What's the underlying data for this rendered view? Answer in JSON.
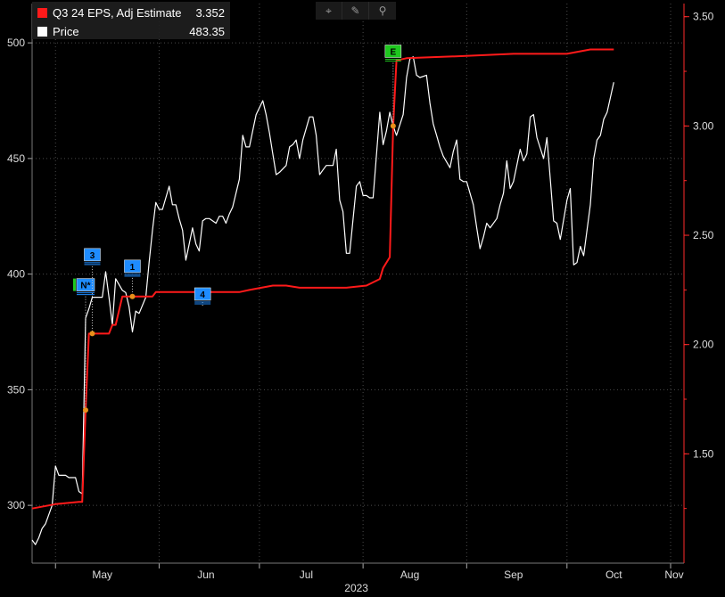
{
  "legend": {
    "items": [
      {
        "name": "Q3 24 EPS, Adj Estimate",
        "value": "3.352",
        "color": "#ff1a1a"
      },
      {
        "name": "Price",
        "value": "483.35",
        "color": "#ffffff"
      }
    ]
  },
  "toolbar": {
    "tools": [
      {
        "icon": "crosshair-icon",
        "glyph": "⌖"
      },
      {
        "icon": "pencil-icon",
        "glyph": "✎"
      },
      {
        "icon": "zoom-icon",
        "glyph": "⚲"
      }
    ]
  },
  "chart_data": {
    "type": "line",
    "xaxis": {
      "months": [
        "May",
        "Jun",
        "Jul",
        "Aug",
        "Sep",
        "Oct",
        "Nov"
      ],
      "year": "2023",
      "range": [
        "2023-04-24",
        "2023-11-05"
      ]
    },
    "left_axis": {
      "ticks": [
        "300",
        "350",
        "400",
        "450",
        "500"
      ],
      "range": [
        275,
        517
      ]
    },
    "right_axis": {
      "ticks": [
        "1.50",
        "2.00",
        "2.50",
        "3.00",
        "3.50"
      ],
      "range": [
        1.0,
        3.56
      ],
      "color": "#ff2a2a"
    },
    "grid": true,
    "series": [
      {
        "name": "Price",
        "axis": "left",
        "color": "#ffffff",
        "points": [
          [
            "2023-04-24",
            285
          ],
          [
            "2023-04-25",
            283
          ],
          [
            "2023-04-26",
            286
          ],
          [
            "2023-04-27",
            290
          ],
          [
            "2023-04-28",
            292
          ],
          [
            "2023-04-30",
            300
          ],
          [
            "2023-05-01",
            317
          ],
          [
            "2023-05-02",
            313
          ],
          [
            "2023-05-03",
            313
          ],
          [
            "2023-05-04",
            313
          ],
          [
            "2023-05-05",
            312
          ],
          [
            "2023-05-07",
            312
          ],
          [
            "2023-05-08",
            306
          ],
          [
            "2023-05-09",
            305
          ],
          [
            "2023-05-10",
            381
          ],
          [
            "2023-05-11",
            385
          ],
          [
            "2023-05-12",
            390
          ],
          [
            "2023-05-14",
            390
          ],
          [
            "2023-05-15",
            390
          ],
          [
            "2023-05-16",
            401
          ],
          [
            "2023-05-17",
            390
          ],
          [
            "2023-05-18",
            378
          ],
          [
            "2023-05-19",
            398
          ],
          [
            "2023-05-21",
            393
          ],
          [
            "2023-05-22",
            392
          ],
          [
            "2023-05-23",
            386
          ],
          [
            "2023-05-24",
            375
          ],
          [
            "2023-05-25",
            384
          ],
          [
            "2023-05-26",
            383
          ],
          [
            "2023-05-28",
            390
          ],
          [
            "2023-05-29",
            405
          ],
          [
            "2023-05-30",
            419
          ],
          [
            "2023-05-31",
            431
          ],
          [
            "2023-06-01",
            428
          ],
          [
            "2023-06-02",
            428
          ],
          [
            "2023-06-04",
            438
          ],
          [
            "2023-06-05",
            430
          ],
          [
            "2023-06-06",
            430
          ],
          [
            "2023-06-07",
            424
          ],
          [
            "2023-06-08",
            419
          ],
          [
            "2023-06-09",
            406
          ],
          [
            "2023-06-11",
            420
          ],
          [
            "2023-06-12",
            413
          ],
          [
            "2023-06-13",
            410
          ],
          [
            "2023-06-14",
            423
          ],
          [
            "2023-06-15",
            424
          ],
          [
            "2023-06-16",
            424
          ],
          [
            "2023-06-18",
            422
          ],
          [
            "2023-06-19",
            425
          ],
          [
            "2023-06-20",
            425
          ],
          [
            "2023-06-21",
            422
          ],
          [
            "2023-06-22",
            426
          ],
          [
            "2023-06-23",
            429
          ],
          [
            "2023-06-25",
            441
          ],
          [
            "2023-06-26",
            460
          ],
          [
            "2023-06-27",
            455
          ],
          [
            "2023-06-28",
            455
          ],
          [
            "2023-06-29",
            462
          ],
          [
            "2023-06-30",
            469
          ],
          [
            "2023-07-02",
            475
          ],
          [
            "2023-07-03",
            469
          ],
          [
            "2023-07-04",
            461
          ],
          [
            "2023-07-05",
            452
          ],
          [
            "2023-07-06",
            443
          ],
          [
            "2023-07-07",
            444
          ],
          [
            "2023-07-09",
            447
          ],
          [
            "2023-07-10",
            455
          ],
          [
            "2023-07-11",
            456
          ],
          [
            "2023-07-12",
            458
          ],
          [
            "2023-07-13",
            450
          ],
          [
            "2023-07-14",
            458
          ],
          [
            "2023-07-16",
            468
          ],
          [
            "2023-07-17",
            468
          ],
          [
            "2023-07-18",
            460
          ],
          [
            "2023-07-19",
            443
          ],
          [
            "2023-07-20",
            445
          ],
          [
            "2023-07-21",
            447
          ],
          [
            "2023-07-23",
            447
          ],
          [
            "2023-07-24",
            454
          ],
          [
            "2023-07-25",
            432
          ],
          [
            "2023-07-26",
            427
          ],
          [
            "2023-07-27",
            409
          ],
          [
            "2023-07-28",
            409
          ],
          [
            "2023-07-30",
            438
          ],
          [
            "2023-07-31",
            440
          ],
          [
            "2023-08-01",
            434
          ],
          [
            "2023-08-02",
            434
          ],
          [
            "2023-08-03",
            433
          ],
          [
            "2023-08-04",
            433
          ],
          [
            "2023-08-06",
            470
          ],
          [
            "2023-08-07",
            456
          ],
          [
            "2023-08-08",
            462
          ],
          [
            "2023-08-09",
            470
          ],
          [
            "2023-08-10",
            464
          ],
          [
            "2023-08-11",
            460
          ],
          [
            "2023-08-13",
            469
          ],
          [
            "2023-08-14",
            485
          ],
          [
            "2023-08-15",
            493
          ],
          [
            "2023-08-16",
            494
          ],
          [
            "2023-08-17",
            486
          ],
          [
            "2023-08-18",
            485
          ],
          [
            "2023-08-20",
            486
          ],
          [
            "2023-08-21",
            474
          ],
          [
            "2023-08-22",
            465
          ],
          [
            "2023-08-23",
            460
          ],
          [
            "2023-08-24",
            455
          ],
          [
            "2023-08-25",
            451
          ],
          [
            "2023-08-27",
            446
          ],
          [
            "2023-08-28",
            453
          ],
          [
            "2023-08-29",
            458
          ],
          [
            "2023-08-30",
            441
          ],
          [
            "2023-08-31",
            440
          ],
          [
            "2023-09-01",
            440
          ],
          [
            "2023-09-03",
            430
          ],
          [
            "2023-09-04",
            420
          ],
          [
            "2023-09-05",
            411
          ],
          [
            "2023-09-06",
            416
          ],
          [
            "2023-09-07",
            422
          ],
          [
            "2023-09-08",
            420
          ],
          [
            "2023-09-10",
            424
          ],
          [
            "2023-09-11",
            430
          ],
          [
            "2023-09-12",
            435
          ],
          [
            "2023-09-13",
            449
          ],
          [
            "2023-09-14",
            437
          ],
          [
            "2023-09-15",
            440
          ],
          [
            "2023-09-17",
            454
          ],
          [
            "2023-09-18",
            449
          ],
          [
            "2023-09-19",
            452
          ],
          [
            "2023-09-20",
            468
          ],
          [
            "2023-09-21",
            469
          ],
          [
            "2023-09-22",
            459
          ],
          [
            "2023-09-24",
            450
          ],
          [
            "2023-09-25",
            459
          ],
          [
            "2023-09-26",
            441
          ],
          [
            "2023-09-27",
            423
          ],
          [
            "2023-09-28",
            422
          ],
          [
            "2023-09-29",
            415
          ],
          [
            "2023-10-01",
            432
          ],
          [
            "2023-10-02",
            437
          ],
          [
            "2023-10-03",
            404
          ],
          [
            "2023-10-04",
            405
          ],
          [
            "2023-10-05",
            412
          ],
          [
            "2023-10-06",
            408
          ],
          [
            "2023-10-08",
            430
          ],
          [
            "2023-10-09",
            450
          ],
          [
            "2023-10-10",
            458
          ],
          [
            "2023-10-11",
            460
          ],
          [
            "2023-10-12",
            467
          ],
          [
            "2023-10-13",
            470
          ],
          [
            "2023-10-15",
            483
          ]
        ]
      },
      {
        "name": "Q3 24 EPS, Adj Estimate",
        "axis": "right",
        "color": "#ff1a1a",
        "points": [
          [
            "2023-04-24",
            1.25
          ],
          [
            "2023-05-01",
            1.27
          ],
          [
            "2023-05-08",
            1.28
          ],
          [
            "2023-05-09",
            1.28
          ],
          [
            "2023-05-10",
            1.7
          ],
          [
            "2023-05-11",
            2.05
          ],
          [
            "2023-05-12",
            2.05
          ],
          [
            "2023-05-17",
            2.05
          ],
          [
            "2023-05-18",
            2.09
          ],
          [
            "2023-05-19",
            2.09
          ],
          [
            "2023-05-21",
            2.22
          ],
          [
            "2023-05-24",
            2.22
          ],
          [
            "2023-05-25",
            2.22
          ],
          [
            "2023-05-30",
            2.22
          ],
          [
            "2023-05-31",
            2.24
          ],
          [
            "2023-06-25",
            2.24
          ],
          [
            "2023-06-28",
            2.25
          ],
          [
            "2023-07-05",
            2.27
          ],
          [
            "2023-07-09",
            2.27
          ],
          [
            "2023-07-13",
            2.26
          ],
          [
            "2023-07-27",
            2.26
          ],
          [
            "2023-08-02",
            2.27
          ],
          [
            "2023-08-06",
            2.3
          ],
          [
            "2023-08-07",
            2.35
          ],
          [
            "2023-08-09",
            2.4
          ],
          [
            "2023-08-10",
            3.0
          ],
          [
            "2023-08-11",
            3.3
          ],
          [
            "2023-08-14",
            3.31
          ],
          [
            "2023-08-31",
            3.32
          ],
          [
            "2023-09-15",
            3.33
          ],
          [
            "2023-10-01",
            3.33
          ],
          [
            "2023-10-08",
            3.35
          ],
          [
            "2023-10-15",
            3.35
          ]
        ]
      }
    ],
    "events": [
      {
        "label": "N*",
        "date": "2023-05-10",
        "series_value": 1.7,
        "box_color": "#1e8cff",
        "price_anchor": 395
      },
      {
        "label": "3",
        "date": "2023-05-12",
        "series_value": 2.05,
        "box_color": "#1e8cff",
        "price_anchor": 408
      },
      {
        "label": "1",
        "date": "2023-05-24",
        "series_value": 2.22,
        "box_color": "#1e8cff",
        "price_anchor": 403
      },
      {
        "label": "4",
        "date": "2023-06-14",
        "series_value": 2.24,
        "box_color": "#1e8cff",
        "price_anchor": 391
      },
      {
        "label": "E",
        "date": "2023-08-10",
        "series_value": 3.0,
        "box_color": "#1ec81e",
        "price_anchor": 496
      }
    ]
  }
}
